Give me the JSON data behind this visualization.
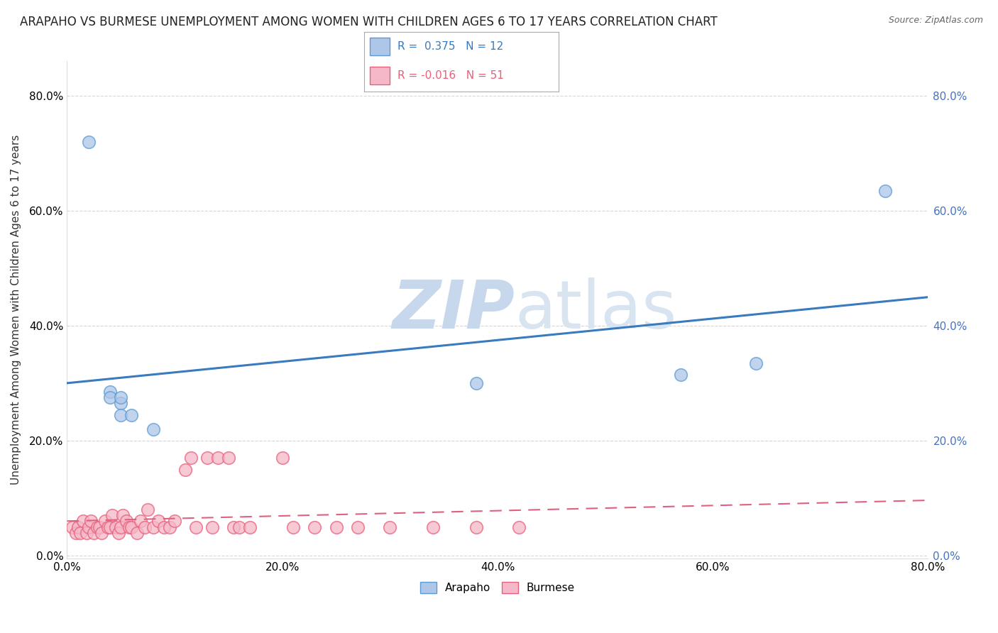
{
  "title": "ARAPAHO VS BURMESE UNEMPLOYMENT AMONG WOMEN WITH CHILDREN AGES 6 TO 17 YEARS CORRELATION CHART",
  "source": "Source: ZipAtlas.com",
  "ylabel": "Unemployment Among Women with Children Ages 6 to 17 years",
  "xlabel": "",
  "watermark_zip": "ZIP",
  "watermark_atlas": "atlas",
  "xlim": [
    0.0,
    0.8
  ],
  "ylim": [
    -0.005,
    0.86
  ],
  "xticks": [
    0.0,
    0.2,
    0.4,
    0.6,
    0.8
  ],
  "yticks": [
    0.0,
    0.2,
    0.4,
    0.6,
    0.8
  ],
  "xticklabels": [
    "0.0%",
    "20.0%",
    "40.0%",
    "60.0%",
    "80.0%"
  ],
  "yticklabels": [
    "0.0%",
    "20.0%",
    "40.0%",
    "60.0%",
    "80.0%"
  ],
  "arapaho_x": [
    0.02,
    0.04,
    0.04,
    0.05,
    0.05,
    0.05,
    0.06,
    0.08,
    0.38,
    0.57,
    0.64,
    0.76
  ],
  "arapaho_y": [
    0.72,
    0.285,
    0.275,
    0.265,
    0.275,
    0.245,
    0.245,
    0.22,
    0.3,
    0.315,
    0.335,
    0.635
  ],
  "burmese_x": [
    0.005,
    0.008,
    0.01,
    0.012,
    0.015,
    0.018,
    0.02,
    0.022,
    0.025,
    0.028,
    0.03,
    0.032,
    0.035,
    0.038,
    0.04,
    0.042,
    0.045,
    0.048,
    0.05,
    0.052,
    0.055,
    0.058,
    0.06,
    0.065,
    0.068,
    0.072,
    0.075,
    0.08,
    0.085,
    0.09,
    0.095,
    0.1,
    0.11,
    0.115,
    0.12,
    0.13,
    0.135,
    0.14,
    0.15,
    0.155,
    0.16,
    0.17,
    0.2,
    0.21,
    0.23,
    0.25,
    0.27,
    0.3,
    0.34,
    0.38,
    0.42
  ],
  "burmese_y": [
    0.05,
    0.04,
    0.05,
    0.04,
    0.06,
    0.04,
    0.05,
    0.06,
    0.04,
    0.05,
    0.05,
    0.04,
    0.06,
    0.05,
    0.05,
    0.07,
    0.05,
    0.04,
    0.05,
    0.07,
    0.06,
    0.05,
    0.05,
    0.04,
    0.06,
    0.05,
    0.08,
    0.05,
    0.06,
    0.05,
    0.05,
    0.06,
    0.15,
    0.17,
    0.05,
    0.17,
    0.05,
    0.17,
    0.17,
    0.05,
    0.05,
    0.05,
    0.17,
    0.05,
    0.05,
    0.05,
    0.05,
    0.05,
    0.05,
    0.05,
    0.05
  ],
  "arapaho_color": "#aec6e8",
  "burmese_color": "#f5b8c8",
  "arapaho_edge_color": "#5b9bd5",
  "burmese_edge_color": "#e8607a",
  "arapaho_line_color": "#3a7abf",
  "burmese_line_color": "#e06080",
  "arapaho_R": 0.375,
  "arapaho_N": 12,
  "burmese_R": -0.016,
  "burmese_N": 51,
  "background_color": "#ffffff",
  "grid_color": "#cccccc",
  "right_tick_color": "#4472c4",
  "title_fontsize": 12,
  "source_fontsize": 9,
  "axis_fontsize": 11,
  "tick_fontsize": 11,
  "legend_fontsize": 11,
  "watermark_color_zip": "#c8d8ec",
  "watermark_color_atlas": "#d8e4f0"
}
